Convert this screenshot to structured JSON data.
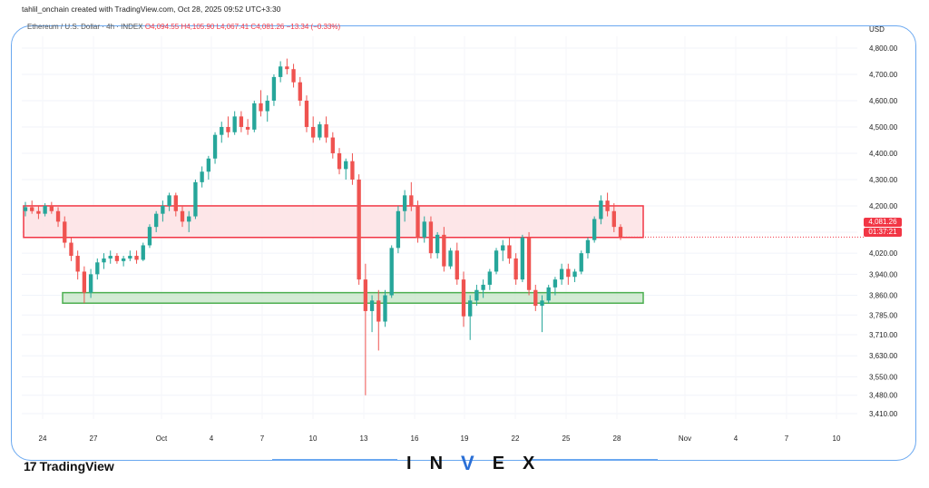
{
  "header": {
    "attribution": "tahlil_onchain created with TradingView.com, Oct 28, 2025 09:52 UTC+3:30"
  },
  "symbol": {
    "name": "Ethereum / U.S. Dollar · 4h · INDEX",
    "open": "O4,094.55",
    "high": "H4,105.90",
    "low": "L4,067.41",
    "close": "C4,081.26",
    "change": "−13.34 (−0.33%)",
    "currency": "USD"
  },
  "price_tag": {
    "price": "4,081.26",
    "countdown": "01:37:21"
  },
  "colors": {
    "up": "#26a69a",
    "down": "#ef5350",
    "resistance_fill": "#fde2e4",
    "resistance_border": "#f23645",
    "support_fill": "#c8e6c9",
    "support_border": "#4caf50",
    "frame": "#6aa8f0",
    "price_tag": "#f23645"
  },
  "branding": {
    "tradingview_mark": "17",
    "tradingview_word": "TradingView",
    "invex_letters": [
      "I",
      "N",
      "V",
      "E",
      "X"
    ]
  },
  "chart_data": {
    "type": "candlestick",
    "ylim": [
      3380,
      4860
    ],
    "y_ticks": [
      "4,800.00",
      "4,700.00",
      "4,600.00",
      "4,500.00",
      "4,400.00",
      "4,300.00",
      "4,200.00",
      "4,100.00",
      "4,020.00",
      "3,940.00",
      "3,860.00",
      "3,785.00",
      "3,710.00",
      "3,630.00",
      "3,550.00",
      "3,480.00",
      "3,410.00"
    ],
    "x_ticks": [
      "24",
      "27",
      "Oct",
      "4",
      "7",
      "10",
      "13",
      "16",
      "19",
      "22",
      "25",
      "28",
      "Nov",
      "4",
      "7",
      "10"
    ],
    "zones": [
      {
        "kind": "resistance",
        "from": 4080,
        "to": 4200
      },
      {
        "kind": "support",
        "from": 3830,
        "to": 3870
      }
    ],
    "last_price": 4081.26,
    "candles_ohlc": [
      [
        4180,
        4215,
        4160,
        4195
      ],
      [
        4195,
        4220,
        4170,
        4180
      ],
      [
        4180,
        4200,
        4150,
        4170
      ],
      [
        4170,
        4210,
        4160,
        4200
      ],
      [
        4200,
        4215,
        4170,
        4180
      ],
      [
        4180,
        4195,
        4120,
        4140
      ],
      [
        4140,
        4160,
        4040,
        4060
      ],
      [
        4060,
        4080,
        3990,
        4010
      ],
      [
        4010,
        4030,
        3920,
        3950
      ],
      [
        3950,
        3970,
        3830,
        3870
      ],
      [
        3870,
        3960,
        3850,
        3940
      ],
      [
        3940,
        4000,
        3920,
        3985
      ],
      [
        3985,
        4020,
        3960,
        4000
      ],
      [
        4000,
        4030,
        3980,
        4010
      ],
      [
        4010,
        4020,
        3980,
        3990
      ],
      [
        3990,
        4010,
        3970,
        4000
      ],
      [
        4000,
        4030,
        3990,
        4010
      ],
      [
        4010,
        4030,
        3980,
        3995
      ],
      [
        3995,
        4060,
        3990,
        4050
      ],
      [
        4050,
        4130,
        4040,
        4120
      ],
      [
        4120,
        4180,
        4100,
        4170
      ],
      [
        4170,
        4220,
        4140,
        4200
      ],
      [
        4200,
        4250,
        4180,
        4240
      ],
      [
        4240,
        4250,
        4160,
        4180
      ],
      [
        4180,
        4200,
        4120,
        4140
      ],
      [
        4140,
        4180,
        4100,
        4160
      ],
      [
        4160,
        4300,
        4150,
        4290
      ],
      [
        4290,
        4350,
        4270,
        4330
      ],
      [
        4330,
        4390,
        4300,
        4380
      ],
      [
        4380,
        4480,
        4360,
        4470
      ],
      [
        4470,
        4520,
        4440,
        4500
      ],
      [
        4500,
        4540,
        4460,
        4480
      ],
      [
        4480,
        4560,
        4470,
        4540
      ],
      [
        4540,
        4560,
        4480,
        4500
      ],
      [
        4500,
        4530,
        4470,
        4490
      ],
      [
        4490,
        4600,
        4480,
        4590
      ],
      [
        4590,
        4640,
        4540,
        4560
      ],
      [
        4560,
        4620,
        4520,
        4600
      ],
      [
        4600,
        4700,
        4580,
        4690
      ],
      [
        4690,
        4750,
        4670,
        4730
      ],
      [
        4730,
        4760,
        4700,
        4720
      ],
      [
        4720,
        4740,
        4650,
        4670
      ],
      [
        4670,
        4690,
        4580,
        4600
      ],
      [
        4600,
        4620,
        4480,
        4500
      ],
      [
        4500,
        4540,
        4440,
        4460
      ],
      [
        4460,
        4520,
        4450,
        4510
      ],
      [
        4510,
        4540,
        4440,
        4460
      ],
      [
        4460,
        4480,
        4380,
        4400
      ],
      [
        4400,
        4420,
        4320,
        4340
      ],
      [
        4340,
        4380,
        4300,
        4370
      ],
      [
        4370,
        4400,
        4280,
        4300
      ],
      [
        4300,
        4320,
        3900,
        3920
      ],
      [
        3920,
        3980,
        3480,
        3800
      ],
      [
        3800,
        3860,
        3720,
        3840
      ],
      [
        3840,
        3880,
        3650,
        3760
      ],
      [
        3760,
        3880,
        3740,
        3860
      ],
      [
        3860,
        4050,
        3850,
        4040
      ],
      [
        4040,
        4200,
        4020,
        4180
      ],
      [
        4180,
        4260,
        4140,
        4240
      ],
      [
        4240,
        4290,
        4180,
        4200
      ],
      [
        4200,
        4220,
        4060,
        4080
      ],
      [
        4080,
        4160,
        4060,
        4140
      ],
      [
        4140,
        4160,
        4000,
        4020
      ],
      [
        4020,
        4100,
        4000,
        4090
      ],
      [
        4090,
        4120,
        3950,
        3970
      ],
      [
        3970,
        4040,
        3960,
        4030
      ],
      [
        4030,
        4060,
        3900,
        3920
      ],
      [
        3920,
        3950,
        3740,
        3780
      ],
      [
        3780,
        3860,
        3690,
        3840
      ],
      [
        3840,
        3900,
        3820,
        3880
      ],
      [
        3880,
        3920,
        3850,
        3900
      ],
      [
        3900,
        3960,
        3880,
        3950
      ],
      [
        3950,
        4040,
        3940,
        4030
      ],
      [
        4030,
        4070,
        3990,
        4050
      ],
      [
        4050,
        4080,
        3980,
        4000
      ],
      [
        4000,
        4020,
        3900,
        3920
      ],
      [
        3920,
        4090,
        3910,
        4080
      ],
      [
        4080,
        4100,
        3860,
        3880
      ],
      [
        3880,
        3900,
        3800,
        3820
      ],
      [
        3820,
        3860,
        3720,
        3840
      ],
      [
        3840,
        3900,
        3830,
        3890
      ],
      [
        3890,
        3930,
        3860,
        3920
      ],
      [
        3920,
        3980,
        3900,
        3960
      ],
      [
        3960,
        3980,
        3900,
        3930
      ],
      [
        3930,
        3960,
        3910,
        3950
      ],
      [
        3950,
        4030,
        3940,
        4020
      ],
      [
        4020,
        4080,
        4000,
        4070
      ],
      [
        4070,
        4160,
        4060,
        4150
      ],
      [
        4150,
        4240,
        4130,
        4220
      ],
      [
        4220,
        4250,
        4160,
        4180
      ],
      [
        4180,
        4210,
        4100,
        4120
      ],
      [
        4120,
        4130,
        4070,
        4081.26
      ]
    ]
  }
}
